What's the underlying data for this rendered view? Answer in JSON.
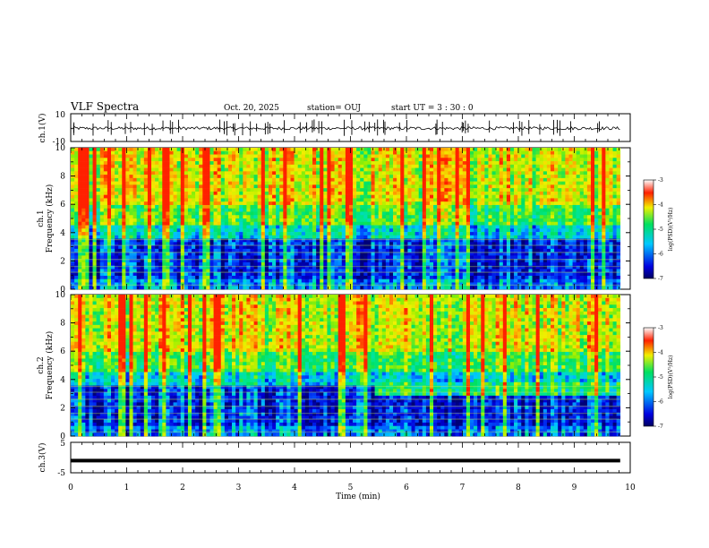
{
  "header": {
    "title": "VLF Spectra",
    "date": "Oct. 20, 2025",
    "station": "station= OUJ",
    "start": "start  UT =   3 : 30 : 0"
  },
  "chart_data": [
    {
      "type": "line",
      "panel": "ch1-waveform",
      "ylabel": "ch.1(V)",
      "ylim": [
        -10,
        10
      ],
      "y_ticks": [
        "10",
        "-10"
      ],
      "xlim": [
        0,
        10
      ],
      "description_values": {
        "baseline_v": -0.5,
        "spike_range_v": [
          -6,
          6
        ]
      }
    },
    {
      "type": "heatmap",
      "panel": "ch1-spectrogram",
      "ylabel": "ch.1\nFrequency (kHz)",
      "ylabel_lines": [
        "ch.1",
        "Frequency (kHz)"
      ],
      "ylim": [
        0,
        10
      ],
      "y_ticks": [
        "0",
        "2",
        "4",
        "6",
        "8",
        "10"
      ],
      "xlim": [
        0,
        9.8
      ],
      "colorbar": {
        "label": "log(PSD)(V²/Hz)",
        "range": [
          -7,
          -3
        ],
        "ticks": [
          "-3",
          "-4",
          "-5",
          "-6",
          "-7"
        ]
      }
    },
    {
      "type": "heatmap",
      "panel": "ch2-spectrogram",
      "ylabel": "ch.2\nFrequency (kHz)",
      "ylabel_lines": [
        "ch.2",
        "Frequency (kHz)"
      ],
      "ylim": [
        0,
        10
      ],
      "y_ticks": [
        "0",
        "2",
        "4",
        "6",
        "8",
        "10"
      ],
      "xlim": [
        0,
        9.8
      ],
      "band_change_time_min": 5.4,
      "colorbar": {
        "label": "log(PSD)(V²/Hz)",
        "range": [
          -7,
          -3
        ],
        "ticks": [
          "-3",
          "-4",
          "-5",
          "-6",
          "-7"
        ]
      }
    },
    {
      "type": "line",
      "panel": "ch3-waveform",
      "ylabel": "ch.3(V)",
      "ylim": [
        -5,
        5
      ],
      "y_ticks": [
        "5",
        "-5"
      ],
      "xlim": [
        0,
        10
      ],
      "description_values": {
        "constant_v": -1
      }
    }
  ],
  "x_axis": {
    "label": "Time (min)",
    "ticks": [
      "0",
      "1",
      "2",
      "3",
      "4",
      "5",
      "6",
      "7",
      "8",
      "9",
      "10"
    ]
  },
  "colors": {
    "low": "#0000d0",
    "mid_low": "#00c8ff",
    "mid": "#00e060",
    "mid_high": "#f0f000",
    "high": "#ff2000"
  }
}
